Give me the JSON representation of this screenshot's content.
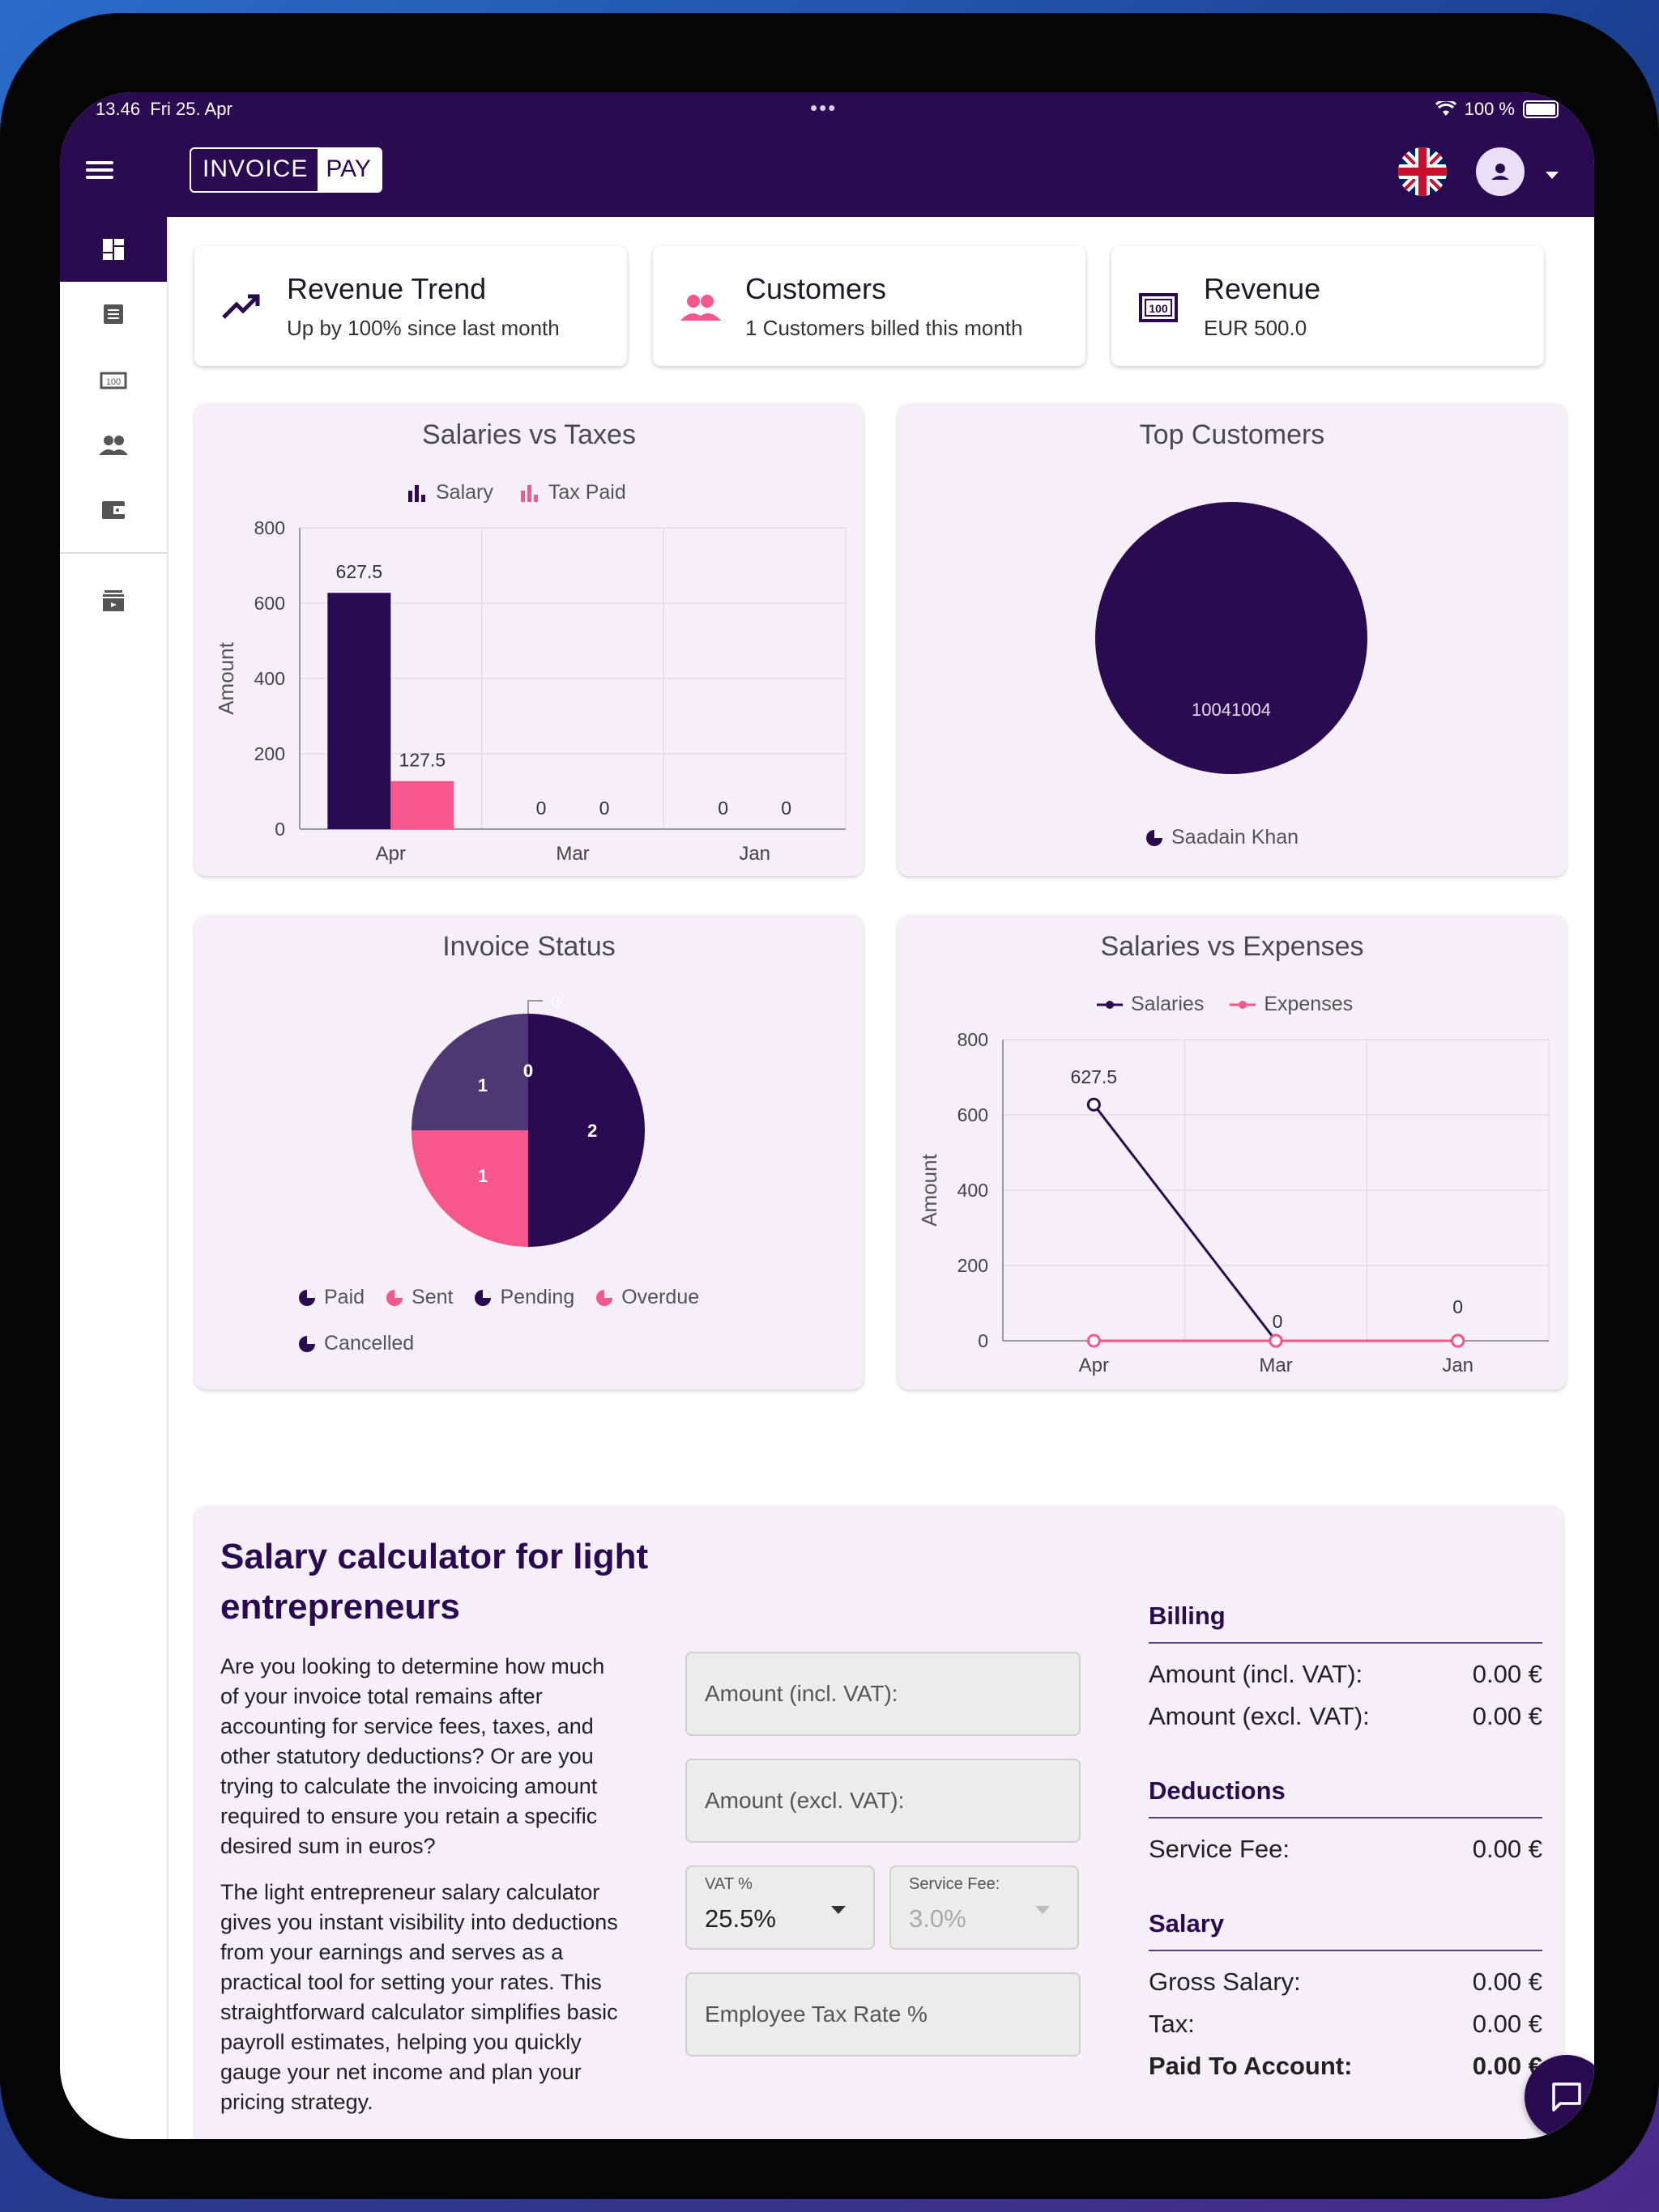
{
  "status_bar": {
    "time": "13.46",
    "date": "Fri 25. Apr",
    "battery": "100 %"
  },
  "app": {
    "logo_part1": "INVOICE",
    "logo_part2": "PAY"
  },
  "sidebar": {
    "items": [
      "dashboard-icon",
      "invoice-list-icon",
      "money-icon",
      "customers-icon",
      "wallet-icon",
      "archive-icon"
    ]
  },
  "stats": [
    {
      "title": "Revenue Trend",
      "subtitle": "Up by 100% since last month"
    },
    {
      "title": "Customers",
      "subtitle": "1 Customers billed this month"
    },
    {
      "title": "Revenue",
      "subtitle": "EUR 500.0"
    }
  ],
  "colors": {
    "primary": "#2a0a50",
    "accent": "#f7578c",
    "card_bg": "#f5eff8",
    "slice_muted": "#4e3873"
  },
  "charts": {
    "salaries_vs_taxes": {
      "title": "Salaries vs Taxes",
      "legend": [
        "Salary",
        "Tax Paid"
      ],
      "ylabel": "Amount"
    },
    "top_customers": {
      "title": "Top Customers",
      "slice_label": "10041004",
      "legend": "Saadain Khan"
    },
    "invoice_status": {
      "title": "Invoice Status",
      "legend": [
        "Paid",
        "Sent",
        "Pending",
        "Overdue",
        "Cancelled"
      ]
    },
    "salaries_vs_expenses": {
      "title": "Salaries vs Expenses",
      "legend": [
        "Salaries",
        "Expenses"
      ],
      "ylabel": "Amount"
    }
  },
  "chart_data": [
    {
      "type": "bar",
      "title": "Salaries vs Taxes",
      "categories": [
        "Apr",
        "Mar",
        "Jan"
      ],
      "series": [
        {
          "name": "Salary",
          "values": [
            627.5,
            0,
            0
          ]
        },
        {
          "name": "Tax Paid",
          "values": [
            127.5,
            0,
            0
          ]
        }
      ],
      "ylabel": "Amount",
      "ylim": [
        0,
        800
      ],
      "yticks": [
        0,
        200,
        400,
        600,
        800
      ]
    },
    {
      "type": "pie",
      "title": "Top Customers",
      "labels": [
        "10041004"
      ],
      "legend": [
        "Saadain Khan"
      ],
      "values": [
        1
      ]
    },
    {
      "type": "pie",
      "title": "Invoice Status",
      "labels": [
        "Paid",
        "Sent",
        "Pending",
        "Overdue",
        "Cancelled"
      ],
      "values": [
        2,
        1,
        1,
        0,
        0
      ]
    },
    {
      "type": "line",
      "title": "Salaries vs Expenses",
      "categories": [
        "Apr",
        "Mar",
        "Jan"
      ],
      "series": [
        {
          "name": "Salaries",
          "values": [
            627.5,
            0,
            0
          ]
        },
        {
          "name": "Expenses",
          "values": [
            0,
            0,
            0
          ]
        }
      ],
      "ylabel": "Amount",
      "ylim": [
        0,
        800
      ],
      "yticks": [
        0,
        200,
        400,
        600,
        800
      ]
    }
  ],
  "calculator": {
    "title": "Salary calculator for light entrepreneurs",
    "para1": "Are you looking to determine how much of your invoice total remains after accounting for service fees, taxes, and other statutory deductions? Or are you trying to calculate the invoicing amount required to ensure you retain a specific desired sum in euros?",
    "para2": "The light entrepreneur salary calculator gives you instant visibility into deductions from your earnings and serves as a practical tool for setting your rates. This straightforward calculator simplifies basic payroll estimates, helping you quickly gauge your net income and plan your pricing strategy.",
    "amount_incl_placeholder": "Amount (incl. VAT):",
    "amount_excl_placeholder": "Amount (excl. VAT):",
    "vat_label": "VAT %",
    "vat_value": "25.5%",
    "fee_label": "Service Fee:",
    "fee_value": "3.0%",
    "tax_rate_placeholder": "Employee Tax Rate %",
    "billing": {
      "header": "Billing",
      "incl_label": "Amount (incl. VAT):",
      "incl_value": "0.00 €",
      "excl_label": "Amount (excl. VAT):",
      "excl_value": "0.00 €"
    },
    "deductions": {
      "header": "Deductions",
      "fee_label": "Service Fee:",
      "fee_value": "0.00 €"
    },
    "salary": {
      "header": "Salary",
      "gross_label": "Gross Salary:",
      "gross_value": "0.00 €",
      "tax_label": "Tax:",
      "tax_value": "0.00 €",
      "paid_label": "Paid To Account:",
      "paid_value": "0.00 €"
    }
  }
}
